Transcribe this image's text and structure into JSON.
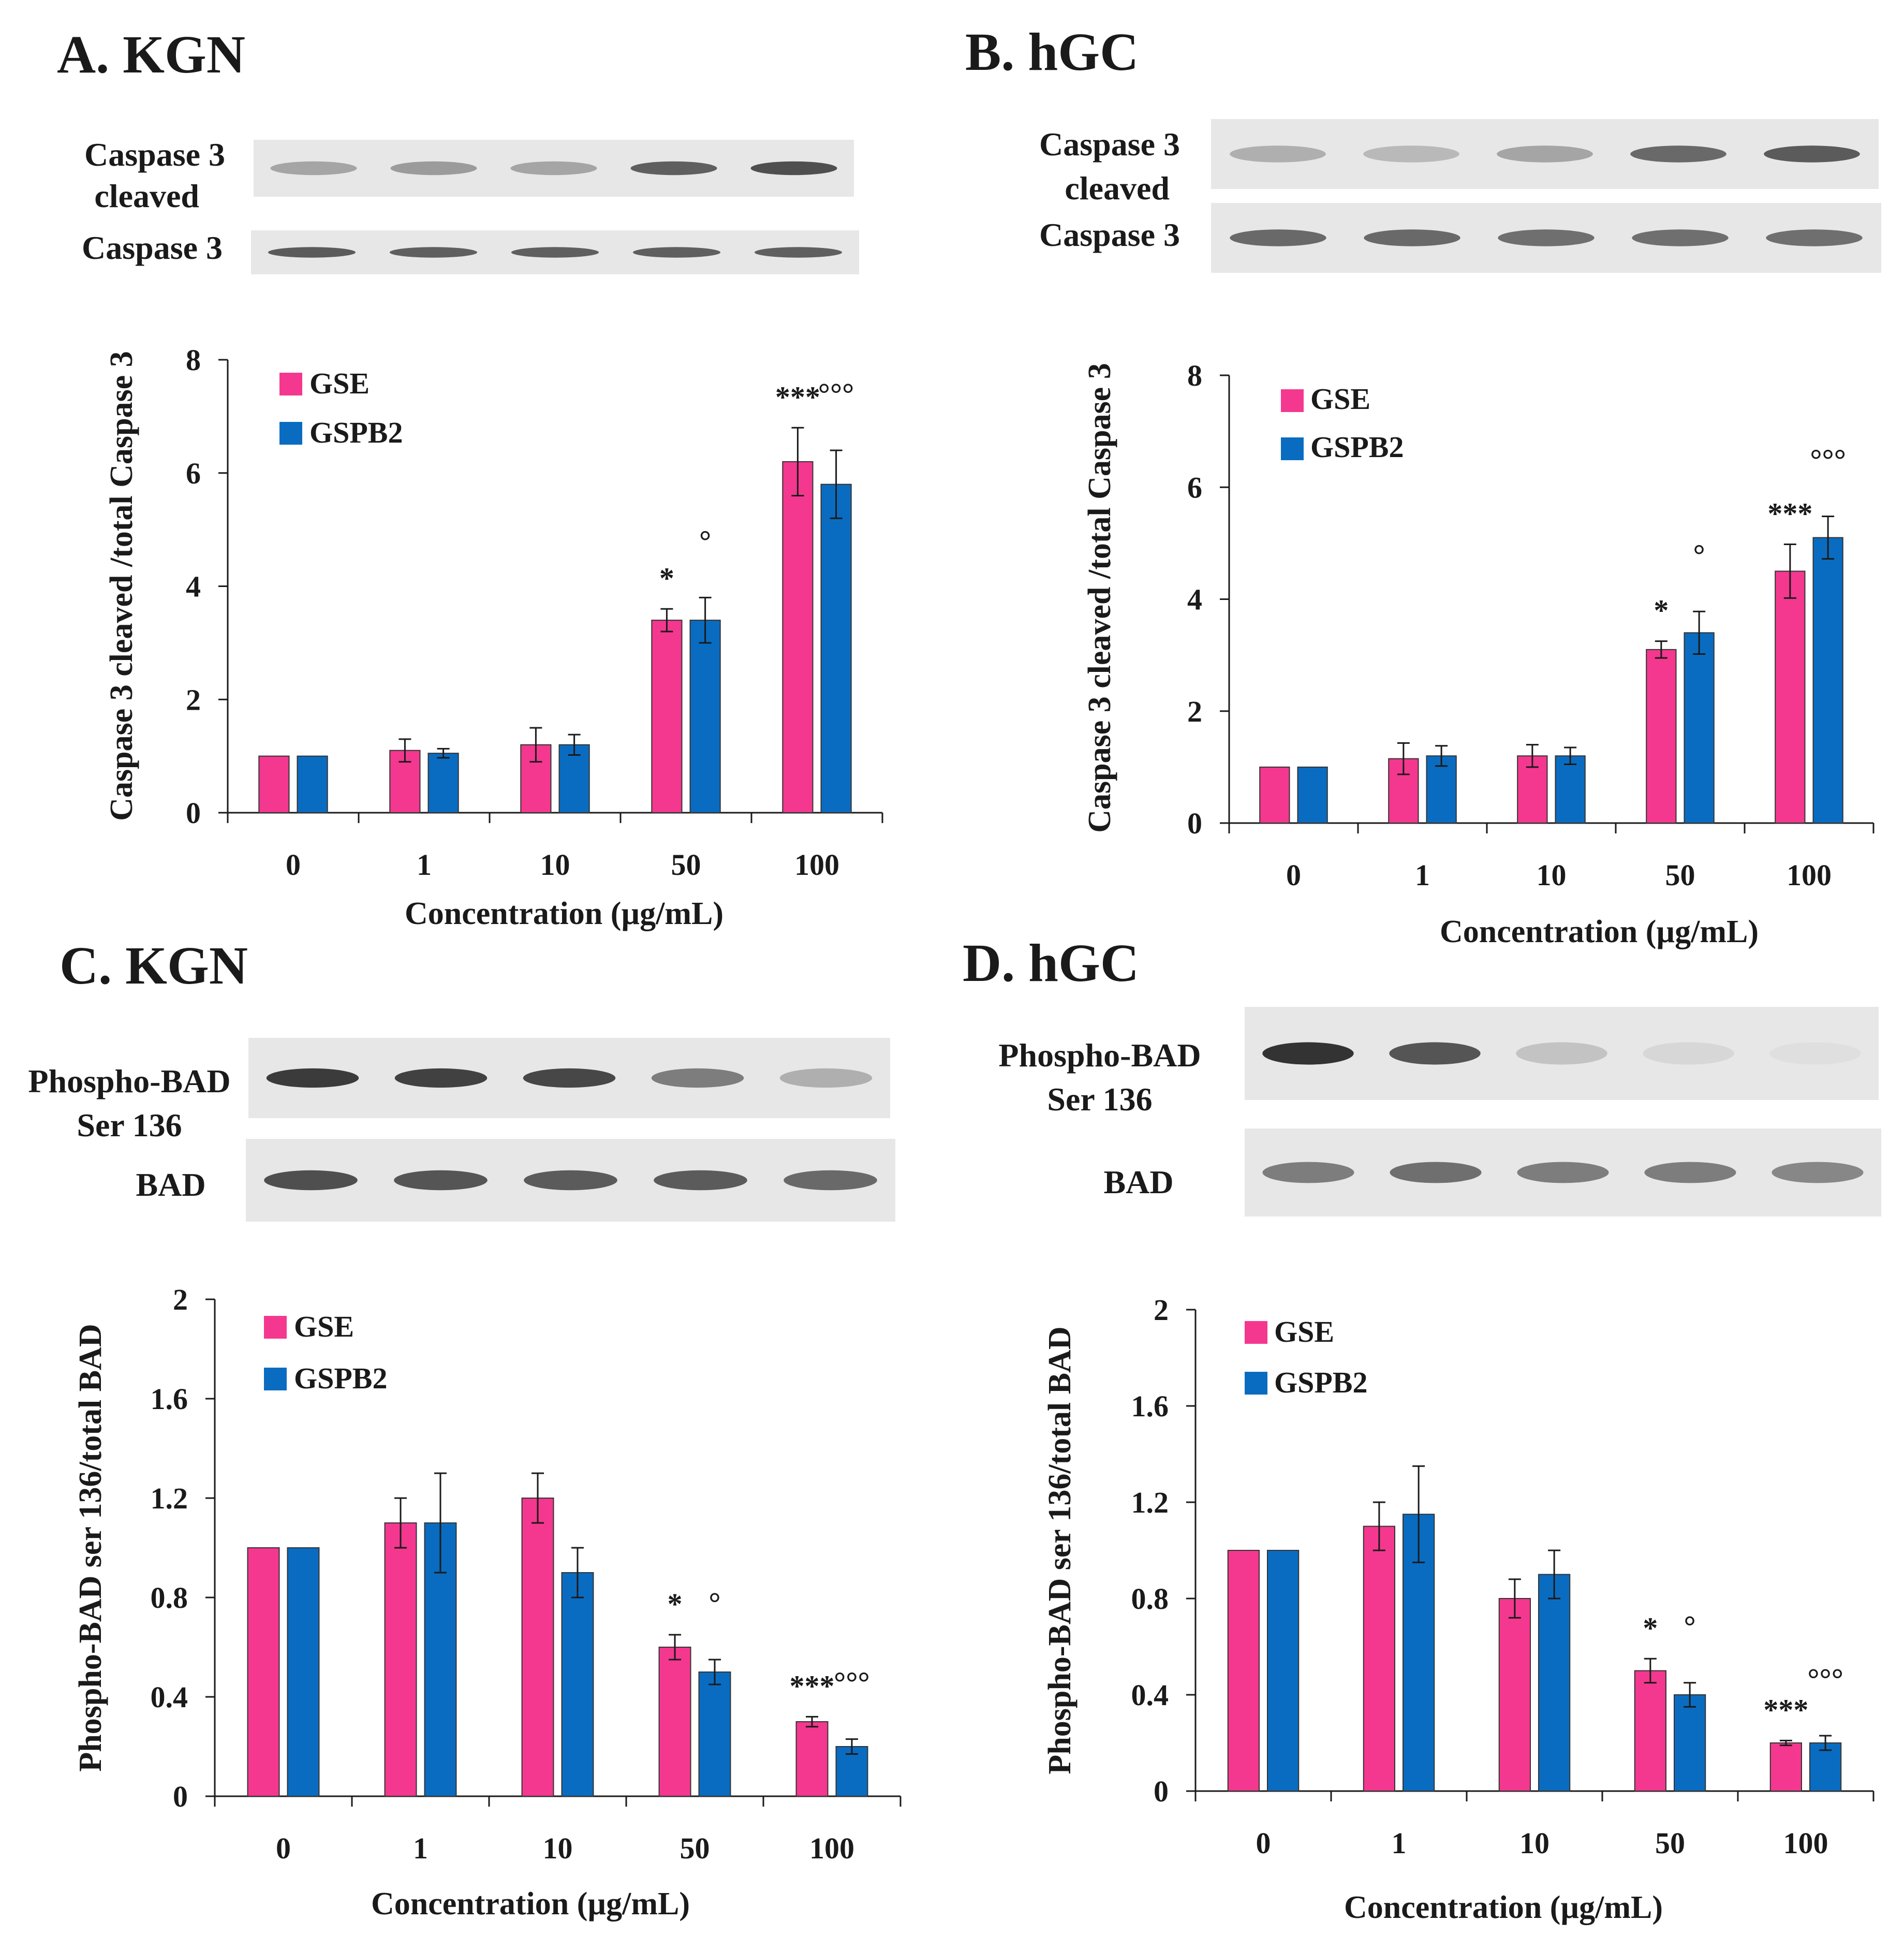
{
  "colors": {
    "gse": "#f4388f",
    "gspb2": "#0a6cc0",
    "axis": "#1a1a1a"
  },
  "panels": [
    {
      "id": "A",
      "title": "A. KGN",
      "blots": [
        {
          "label_lines": [
            "Caspase 3",
            "cleaved"
          ],
          "intensities": [
            0.35,
            0.4,
            0.35,
            0.7,
            0.78
          ]
        },
        {
          "label_lines": [
            "Caspase 3"
          ],
          "intensities": [
            0.72,
            0.7,
            0.7,
            0.7,
            0.7
          ]
        }
      ]
    },
    {
      "id": "B",
      "title": "B. hGC",
      "blots": [
        {
          "label_lines": [
            "Caspase 3",
            "cleaved"
          ],
          "intensities": [
            0.3,
            0.25,
            0.35,
            0.65,
            0.72
          ]
        },
        {
          "label_lines": [
            "Caspase 3"
          ],
          "intensities": [
            0.65,
            0.65,
            0.62,
            0.62,
            0.62
          ]
        }
      ]
    },
    {
      "id": "C",
      "title": "C. KGN",
      "blots": [
        {
          "label_lines": [
            "Phospho-BAD",
            "Ser 136"
          ],
          "intensities": [
            0.88,
            0.85,
            0.82,
            0.55,
            0.3
          ]
        },
        {
          "label_lines": [
            "BAD"
          ],
          "intensities": [
            0.78,
            0.75,
            0.72,
            0.72,
            0.65
          ]
        }
      ]
    },
    {
      "id": "D",
      "title": "D. hGC",
      "blots": [
        {
          "label_lines": [
            "Phospho-BAD",
            "Ser 136"
          ],
          "intensities": [
            0.92,
            0.75,
            0.2,
            0.1,
            0.06
          ]
        },
        {
          "label_lines": [
            "BAD"
          ],
          "intensities": [
            0.55,
            0.62,
            0.55,
            0.55,
            0.5
          ]
        }
      ]
    }
  ],
  "chart_data": [
    {
      "panel": "A",
      "type": "bar",
      "categories": [
        "0",
        "1",
        "10",
        "50",
        "100"
      ],
      "xlabel": "Concentration (µg/mL)",
      "ylabel": "Caspase 3 cleaved /total Caspase 3",
      "ylim": [
        0,
        8
      ],
      "yticks": [
        "0",
        "2",
        "4",
        "6",
        "8"
      ],
      "legend": "top-left",
      "series": [
        {
          "name": "GSE",
          "values": [
            1.0,
            1.1,
            1.2,
            3.4,
            6.2
          ],
          "errors": [
            0,
            0.2,
            0.3,
            0.2,
            0.6
          ],
          "marks": [
            "",
            "",
            "",
            "*",
            "***"
          ]
        },
        {
          "name": "GSPB2",
          "values": [
            1.0,
            1.05,
            1.2,
            3.4,
            5.8
          ],
          "errors": [
            0,
            0.08,
            0.18,
            0.4,
            0.6
          ],
          "marks": [
            "",
            "",
            "",
            "°",
            "°°°"
          ]
        }
      ]
    },
    {
      "panel": "B",
      "type": "bar",
      "categories": [
        "0",
        "1",
        "10",
        "50",
        "100"
      ],
      "xlabel": "Concentration (µg/mL)",
      "ylabel": "Caspase 3 cleaved /total Caspase 3",
      "ylim": [
        0,
        8
      ],
      "yticks": [
        "0",
        "2",
        "4",
        "6",
        "8"
      ],
      "legend": "top-left",
      "series": [
        {
          "name": "GSE",
          "values": [
            1.0,
            1.15,
            1.2,
            3.1,
            4.5
          ],
          "errors": [
            0,
            0.28,
            0.2,
            0.15,
            0.48
          ],
          "marks": [
            "",
            "",
            "",
            "*",
            "***"
          ]
        },
        {
          "name": "GSPB2",
          "values": [
            1.0,
            1.2,
            1.2,
            3.4,
            5.1
          ],
          "errors": [
            0,
            0.18,
            0.15,
            0.38,
            0.38
          ],
          "marks": [
            "",
            "",
            "",
            "°",
            "°°°"
          ]
        }
      ]
    },
    {
      "panel": "C",
      "type": "bar",
      "categories": [
        "0",
        "1",
        "10",
        "50",
        "100"
      ],
      "xlabel": "Concentration (µg/mL)",
      "ylabel": "Phospho-BAD ser 136/total BAD",
      "ylim": [
        0,
        2
      ],
      "yticks": [
        "0",
        "0.4",
        "0.8",
        "1.2",
        "1.6",
        "2"
      ],
      "legend": "top-left",
      "series": [
        {
          "name": "GSE",
          "values": [
            1.0,
            1.1,
            1.2,
            0.6,
            0.3
          ],
          "errors": [
            0,
            0.1,
            0.1,
            0.05,
            0.02
          ],
          "marks": [
            "",
            "",
            "",
            "*",
            "***"
          ]
        },
        {
          "name": "GSPB2",
          "values": [
            1.0,
            1.1,
            0.9,
            0.5,
            0.2
          ],
          "errors": [
            0,
            0.2,
            0.1,
            0.05,
            0.03
          ],
          "marks": [
            "",
            "",
            "",
            "°",
            "°°°"
          ]
        }
      ]
    },
    {
      "panel": "D",
      "type": "bar",
      "categories": [
        "0",
        "1",
        "10",
        "50",
        "100"
      ],
      "xlabel": "Concentration (µg/mL)",
      "ylabel": "Phospho-BAD ser 136/total BAD",
      "ylim": [
        0,
        2
      ],
      "yticks": [
        "0",
        "0.4",
        "0.8",
        "1.2",
        "1.6",
        "2"
      ],
      "legend": "top-left",
      "series": [
        {
          "name": "GSE",
          "values": [
            1.0,
            1.1,
            0.8,
            0.5,
            0.2
          ],
          "errors": [
            0,
            0.1,
            0.08,
            0.05,
            0.01
          ],
          "marks": [
            "",
            "",
            "",
            "*",
            "***"
          ]
        },
        {
          "name": "GSPB2",
          "values": [
            1.0,
            1.15,
            0.9,
            0.4,
            0.2
          ],
          "errors": [
            0,
            0.2,
            0.1,
            0.05,
            0.03
          ],
          "marks": [
            "",
            "",
            "",
            "°",
            "°°°"
          ]
        }
      ]
    }
  ]
}
